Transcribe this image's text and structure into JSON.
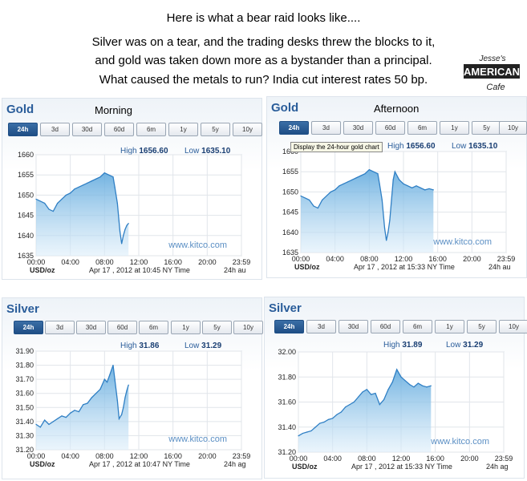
{
  "caption": {
    "line1": "Here is what a bear raid looks like....",
    "line2": "Silver was on a tear, and the trading desks threw the blocks to it,",
    "line3": "and gold was taken down more as a bystander than a principal.",
    "line4": "What caused the metals to run?  India cut interest rates 50 bp."
  },
  "logo": {
    "line1": "Jesse's",
    "line2": "AMERICAN",
    "line3": "Cafe"
  },
  "tabs": [
    "24h",
    "3d",
    "30d",
    "60d",
    "6m",
    "1y",
    "5y",
    "10y"
  ],
  "tooltip": "Display the 24-hour gold chart",
  "panels": [
    {
      "metal": "Gold",
      "label": "Morning",
      "high_label": "High",
      "high": "1656.60",
      "low_label": "Low",
      "low": "1635.10",
      "unit": "USD/oz",
      "timestamp": "Apr 17 , 2012 at 10:45 NY Time",
      "suffix": "24h au",
      "watermark": "www.kitco.com"
    },
    {
      "metal": "Gold",
      "label": "Afternoon",
      "high_label": "High",
      "high": "1656.60",
      "low_label": "Low",
      "low": "1635.10",
      "unit": "USD/oz",
      "timestamp": "Apr 17 , 2012 at 15:33 NY Time",
      "suffix": "24h au",
      "watermark": "www.kitco.com"
    },
    {
      "metal": "Silver",
      "label": "",
      "high_label": "High",
      "high": "31.86",
      "low_label": "Low",
      "low": "31.29",
      "unit": "USD/oz",
      "timestamp": "Apr 17 , 2012 at 10:47 NY Time",
      "suffix": "24h ag",
      "watermark": "www.kitco.com"
    },
    {
      "metal": "Silver",
      "label": "",
      "high_label": "High",
      "high": "31.89",
      "low_label": "Low",
      "low": "31.29",
      "unit": "USD/oz",
      "timestamp": "Apr 17 , 2012 at 15:33 NY Time",
      "suffix": "24h ag",
      "watermark": "www.kitco.com"
    }
  ],
  "chart_data": [
    {
      "type": "area",
      "title": "Gold",
      "xlabel": "",
      "ylabel": "USD/oz",
      "x_ticks": [
        "00:00",
        "04:00",
        "08:00",
        "12:00",
        "16:00",
        "20:00",
        "23:59"
      ],
      "xlim": [
        0,
        24
      ],
      "ylim": [
        1635,
        1660
      ],
      "y_ticks": [
        1635,
        1640,
        1645,
        1650,
        1655,
        1660
      ],
      "x": [
        0,
        0.5,
        1,
        1.5,
        2,
        2.5,
        3,
        3.5,
        4,
        4.5,
        5,
        5.5,
        6,
        6.5,
        7,
        7.5,
        8,
        8.5,
        9,
        9.2,
        9.5,
        9.8,
        10,
        10.2,
        10.4,
        10.6,
        10.8
      ],
      "values": [
        1649,
        1648.5,
        1648,
        1646.5,
        1646,
        1648,
        1649,
        1650,
        1650.5,
        1651.5,
        1652,
        1652.5,
        1653,
        1653.5,
        1654,
        1654.5,
        1655.5,
        1655,
        1654.5,
        1652,
        1648,
        1641,
        1638,
        1640,
        1641.5,
        1642.5,
        1643
      ]
    },
    {
      "type": "area",
      "title": "Gold",
      "xlabel": "",
      "ylabel": "USD/oz",
      "x_ticks": [
        "00:00",
        "04:00",
        "08:00",
        "12:00",
        "16:00",
        "20:00",
        "23:59"
      ],
      "xlim": [
        0,
        24
      ],
      "ylim": [
        1635,
        1660
      ],
      "y_ticks": [
        1635,
        1640,
        1645,
        1650,
        1655,
        1660
      ],
      "x": [
        0,
        0.5,
        1,
        1.5,
        2,
        2.5,
        3,
        3.5,
        4,
        4.5,
        5,
        5.5,
        6,
        6.5,
        7,
        7.5,
        8,
        8.5,
        9,
        9.2,
        9.5,
        9.8,
        10,
        10.2,
        10.4,
        10.6,
        10.8,
        11,
        11.5,
        12,
        12.5,
        13,
        13.5,
        14,
        14.5,
        15,
        15.5
      ],
      "values": [
        1649,
        1648.5,
        1648,
        1646.5,
        1646,
        1648,
        1649,
        1650,
        1650.5,
        1651.5,
        1652,
        1652.5,
        1653,
        1653.5,
        1654,
        1654.5,
        1655.5,
        1655,
        1654.5,
        1652,
        1648,
        1641,
        1638,
        1640,
        1643,
        1648,
        1653,
        1655,
        1653,
        1652,
        1651.5,
        1651,
        1651.5,
        1651,
        1650.5,
        1650.8,
        1650.5
      ]
    },
    {
      "type": "area",
      "title": "Silver",
      "xlabel": "",
      "ylabel": "USD/oz",
      "x_ticks": [
        "00:00",
        "04:00",
        "08:00",
        "12:00",
        "16:00",
        "20:00",
        "23:59"
      ],
      "xlim": [
        0,
        24
      ],
      "ylim": [
        31.2,
        31.9
      ],
      "y_ticks": [
        31.2,
        31.3,
        31.4,
        31.5,
        31.6,
        31.7,
        31.8,
        31.9
      ],
      "x": [
        0,
        0.5,
        1,
        1.5,
        2,
        2.5,
        3,
        3.5,
        4,
        4.5,
        5,
        5.5,
        6,
        6.5,
        7,
        7.5,
        8,
        8.3,
        8.6,
        9,
        9.2,
        9.5,
        9.7,
        10,
        10.2,
        10.4,
        10.6,
        10.8
      ],
      "values": [
        31.38,
        31.36,
        31.41,
        31.38,
        31.4,
        31.42,
        31.44,
        31.43,
        31.46,
        31.48,
        31.47,
        31.52,
        31.53,
        31.57,
        31.6,
        31.63,
        31.7,
        31.68,
        31.73,
        31.8,
        31.7,
        31.55,
        31.42,
        31.45,
        31.5,
        31.57,
        31.62,
        31.66
      ]
    },
    {
      "type": "area",
      "title": "Silver",
      "xlabel": "",
      "ylabel": "USD/oz",
      "x_ticks": [
        "00:00",
        "04:00",
        "08:00",
        "12:00",
        "16:00",
        "20:00",
        "23:59"
      ],
      "xlim": [
        0,
        24
      ],
      "ylim": [
        31.2,
        32.0
      ],
      "y_ticks": [
        31.2,
        31.4,
        31.6,
        31.8,
        32.0
      ],
      "x": [
        0,
        0.5,
        1,
        1.5,
        2,
        2.5,
        3,
        3.5,
        4,
        4.5,
        5,
        5.5,
        6,
        6.5,
        7,
        7.5,
        8,
        8.5,
        9,
        9.5,
        10,
        10.5,
        11,
        11.5,
        12,
        12.5,
        13,
        13.5,
        14,
        14.5,
        15,
        15.5
      ],
      "values": [
        31.33,
        31.35,
        31.36,
        31.37,
        31.4,
        31.43,
        31.44,
        31.46,
        31.47,
        31.5,
        31.52,
        31.56,
        31.58,
        31.6,
        31.64,
        31.68,
        31.7,
        31.66,
        31.67,
        31.58,
        31.62,
        31.7,
        31.76,
        31.86,
        31.8,
        31.77,
        31.74,
        31.72,
        31.75,
        31.73,
        31.72,
        31.73
      ]
    }
  ]
}
